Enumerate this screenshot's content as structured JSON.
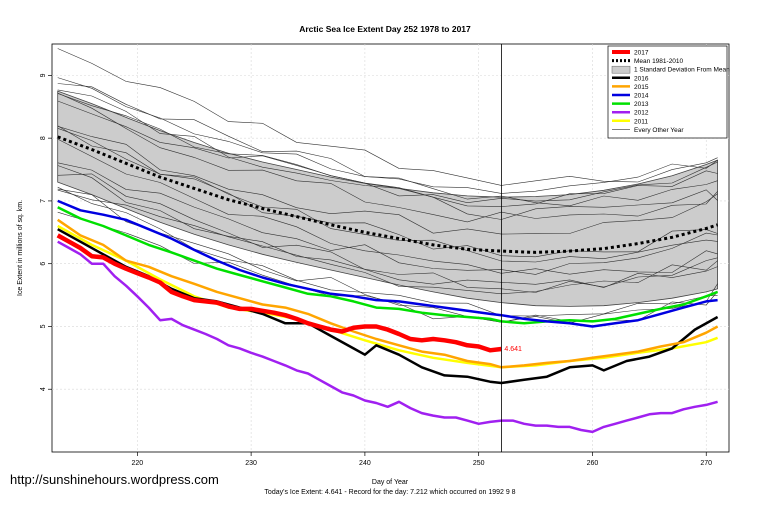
{
  "watermark": "http://sunshinehours.wordpress.com",
  "chart_data": {
    "type": "line",
    "title": "Arctic Sea Ice Extent Day 252 1978 to 2017",
    "xlabel": "Day of Year",
    "ylabel": "Ice Extent in millions of sq. km.",
    "footer": "Today's Ice Extent: 4.641  - Record for the day: 7.212 which occurred on 1992 9 8",
    "xlim": [
      212.5,
      272
    ],
    "ylim": [
      3.0,
      9.5
    ],
    "xticks": [
      220,
      230,
      240,
      250,
      260,
      270
    ],
    "yticks": [
      4,
      5,
      6,
      7,
      8,
      9
    ],
    "grid": true,
    "legend_position": "top-right",
    "vline_x": 252,
    "current_value_label": "4.641",
    "mean": {
      "name": "Mean 1981-2010",
      "x": [
        213,
        216,
        219,
        222,
        225,
        228,
        231,
        234,
        237,
        240,
        243,
        246,
        249,
        252,
        255,
        258,
        261,
        264,
        267,
        270,
        271
      ],
      "values": [
        8.02,
        7.82,
        7.6,
        7.38,
        7.2,
        7.02,
        6.88,
        6.75,
        6.62,
        6.5,
        6.4,
        6.3,
        6.23,
        6.2,
        6.18,
        6.2,
        6.24,
        6.32,
        6.42,
        6.56,
        6.62
      ]
    },
    "std_band": {
      "name": "1 Standard Deviation From Mean",
      "x": [
        213,
        216,
        219,
        222,
        225,
        228,
        231,
        234,
        237,
        240,
        243,
        246,
        249,
        252,
        255,
        258,
        261,
        264,
        267,
        270,
        271
      ],
      "upper": [
        8.75,
        8.55,
        8.33,
        8.12,
        7.93,
        7.76,
        7.62,
        7.5,
        7.38,
        7.28,
        7.2,
        7.13,
        7.08,
        7.06,
        7.07,
        7.1,
        7.17,
        7.27,
        7.4,
        7.58,
        7.65
      ],
      "lower": [
        7.3,
        7.1,
        6.88,
        6.66,
        6.47,
        6.3,
        6.15,
        6.02,
        5.9,
        5.78,
        5.66,
        5.55,
        5.45,
        5.38,
        5.33,
        5.32,
        5.33,
        5.38,
        5.45,
        5.55,
        5.6
      ]
    },
    "series": [
      {
        "name": "2012",
        "color": "#a020f0",
        "width": 2.5,
        "x": [
          213,
          214,
          215,
          216,
          217,
          218,
          219,
          220,
          221,
          222,
          223,
          224,
          225,
          226,
          227,
          228,
          229,
          230,
          231,
          232,
          233,
          234,
          235,
          236,
          237,
          238,
          239,
          240,
          241,
          242,
          243,
          244,
          245,
          246,
          247,
          248,
          249,
          250,
          251,
          252,
          253,
          254,
          255,
          256,
          257,
          258,
          259,
          260,
          261,
          262,
          263,
          264,
          265,
          266,
          267,
          268,
          269,
          270,
          271
        ],
        "values": [
          6.35,
          6.25,
          6.15,
          6.0,
          6.0,
          5.8,
          5.65,
          5.48,
          5.3,
          5.1,
          5.12,
          5.02,
          4.95,
          4.88,
          4.8,
          4.7,
          4.65,
          4.58,
          4.52,
          4.45,
          4.38,
          4.3,
          4.25,
          4.15,
          4.05,
          3.95,
          3.9,
          3.82,
          3.78,
          3.72,
          3.8,
          3.7,
          3.62,
          3.58,
          3.55,
          3.55,
          3.5,
          3.45,
          3.48,
          3.5,
          3.5,
          3.45,
          3.42,
          3.42,
          3.4,
          3.4,
          3.35,
          3.32,
          3.4,
          3.45,
          3.5,
          3.55,
          3.6,
          3.62,
          3.62,
          3.68,
          3.72,
          3.75,
          3.8
        ]
      },
      {
        "name": "2011",
        "color": "#ffff00",
        "width": 2.5,
        "x": [
          213,
          216,
          219,
          222,
          225,
          228,
          231,
          234,
          237,
          240,
          243,
          246,
          249,
          252,
          255,
          258,
          261,
          264,
          267,
          270,
          271
        ],
        "values": [
          6.6,
          6.3,
          6.05,
          5.75,
          5.48,
          5.3,
          5.22,
          5.12,
          4.95,
          4.78,
          4.62,
          4.5,
          4.42,
          4.35,
          4.38,
          4.45,
          4.5,
          4.58,
          4.65,
          4.75,
          4.82
        ]
      },
      {
        "name": "2016",
        "color": "#000000",
        "width": 2.5,
        "x": [
          213,
          215,
          217,
          219,
          221,
          223,
          225,
          227,
          229,
          231,
          233,
          235,
          237,
          239,
          240,
          241,
          243,
          245,
          247,
          249,
          251,
          252,
          254,
          256,
          258,
          260,
          261,
          263,
          265,
          267,
          269,
          271
        ],
        "values": [
          6.55,
          6.35,
          6.15,
          5.95,
          5.8,
          5.6,
          5.45,
          5.4,
          5.3,
          5.2,
          5.05,
          5.05,
          4.85,
          4.65,
          4.55,
          4.7,
          4.55,
          4.35,
          4.22,
          4.2,
          4.12,
          4.1,
          4.15,
          4.2,
          4.35,
          4.38,
          4.3,
          4.45,
          4.52,
          4.65,
          4.95,
          5.15
        ]
      },
      {
        "name": "2015",
        "color": "#ffa500",
        "width": 2.5,
        "x": [
          213,
          215,
          217,
          219,
          221,
          223,
          225,
          227,
          229,
          231,
          233,
          235,
          237,
          239,
          241,
          243,
          245,
          247,
          249,
          251,
          252,
          254,
          256,
          258,
          260,
          262,
          264,
          266,
          268,
          270,
          271
        ],
        "values": [
          6.7,
          6.45,
          6.3,
          6.05,
          5.95,
          5.8,
          5.68,
          5.55,
          5.45,
          5.35,
          5.3,
          5.2,
          5.05,
          4.92,
          4.8,
          4.7,
          4.6,
          4.55,
          4.45,
          4.4,
          4.35,
          4.38,
          4.42,
          4.45,
          4.5,
          4.55,
          4.6,
          4.68,
          4.75,
          4.9,
          5.0
        ]
      },
      {
        "name": "2013",
        "color": "#00e000",
        "width": 2.5,
        "x": [
          213,
          215,
          217,
          219,
          221,
          223,
          225,
          227,
          229,
          231,
          233,
          235,
          237,
          239,
          241,
          243,
          245,
          247,
          249,
          251,
          252,
          254,
          256,
          258,
          260,
          262,
          264,
          266,
          268,
          270,
          271
        ],
        "values": [
          6.9,
          6.72,
          6.6,
          6.45,
          6.3,
          6.18,
          6.05,
          5.92,
          5.82,
          5.72,
          5.62,
          5.52,
          5.48,
          5.4,
          5.3,
          5.28,
          5.22,
          5.18,
          5.15,
          5.12,
          5.08,
          5.05,
          5.08,
          5.1,
          5.08,
          5.12,
          5.2,
          5.28,
          5.35,
          5.48,
          5.55
        ]
      },
      {
        "name": "2014",
        "color": "#0000e0",
        "width": 2.5,
        "x": [
          213,
          215,
          217,
          219,
          221,
          223,
          225,
          227,
          229,
          231,
          233,
          235,
          237,
          239,
          241,
          243,
          245,
          247,
          249,
          251,
          252,
          254,
          256,
          258,
          260,
          262,
          264,
          266,
          268,
          270,
          271
        ],
        "values": [
          7.0,
          6.85,
          6.78,
          6.7,
          6.55,
          6.4,
          6.22,
          6.05,
          5.9,
          5.78,
          5.68,
          5.6,
          5.52,
          5.48,
          5.42,
          5.4,
          5.35,
          5.3,
          5.25,
          5.2,
          5.18,
          5.12,
          5.08,
          5.05,
          5.0,
          5.05,
          5.1,
          5.2,
          5.3,
          5.4,
          5.42
        ]
      },
      {
        "name": "2017",
        "color": "#ff0000",
        "width": 4.5,
        "x": [
          213,
          214,
          215,
          216,
          217,
          218,
          219,
          220,
          221,
          222,
          223,
          224,
          225,
          226,
          227,
          228,
          229,
          230,
          231,
          232,
          233,
          234,
          235,
          236,
          237,
          238,
          239,
          240,
          241,
          242,
          243,
          244,
          245,
          246,
          247,
          248,
          249,
          250,
          251,
          252
        ],
        "values": [
          6.45,
          6.35,
          6.25,
          6.12,
          6.1,
          6.0,
          5.92,
          5.85,
          5.78,
          5.7,
          5.55,
          5.48,
          5.42,
          5.4,
          5.38,
          5.32,
          5.28,
          5.28,
          5.25,
          5.22,
          5.18,
          5.12,
          5.05,
          5.0,
          4.95,
          4.92,
          4.98,
          5.0,
          5.0,
          4.95,
          4.88,
          4.8,
          4.78,
          4.8,
          4.78,
          4.75,
          4.7,
          4.68,
          4.62,
          4.641
        ]
      }
    ],
    "legend": [
      {
        "label": "2017",
        "color": "#ff0000",
        "style": "line",
        "width": 4
      },
      {
        "label": "Mean 1981-2010",
        "color": "#000000",
        "style": "dotted",
        "width": 3
      },
      {
        "label": "1 Standard Deviation From Mean",
        "color": "#cccccc",
        "style": "box",
        "width": 0
      },
      {
        "label": "2016",
        "color": "#000000",
        "style": "line",
        "width": 2.5
      },
      {
        "label": "2015",
        "color": "#ffa500",
        "style": "line",
        "width": 2.5
      },
      {
        "label": "2014",
        "color": "#0000e0",
        "style": "line",
        "width": 2.5
      },
      {
        "label": "2013",
        "color": "#00e000",
        "style": "line",
        "width": 2.5
      },
      {
        "label": "2012",
        "color": "#a020f0",
        "style": "line",
        "width": 2.5
      },
      {
        "label": "2011",
        "color": "#ffff00",
        "style": "line",
        "width": 2.5
      },
      {
        "label": "Every Other Year",
        "color": "#555555",
        "style": "line",
        "width": 0.8
      }
    ],
    "other_years_count": 18
  }
}
